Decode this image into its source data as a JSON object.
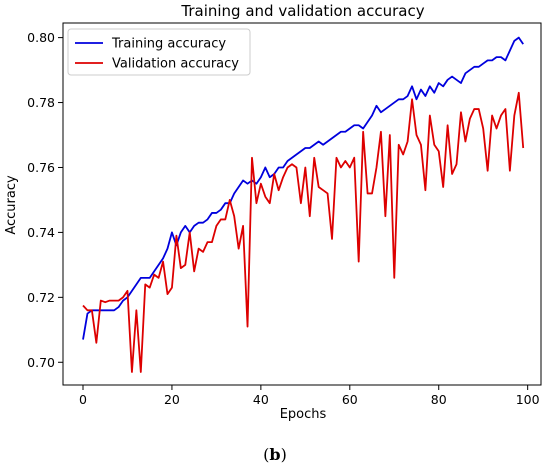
{
  "chart_data": {
    "type": "line",
    "title": "Training and validation accuracy",
    "xlabel": "Epochs",
    "ylabel": "Accuracy",
    "xlim": [
      -4.5,
      103
    ],
    "ylim": [
      0.693,
      0.8045
    ],
    "x_ticks": [
      0,
      20,
      40,
      60,
      80,
      100
    ],
    "y_ticks": [
      0.7,
      0.72,
      0.74,
      0.76,
      0.78,
      0.8
    ],
    "grid": false,
    "legend_position": "top-left",
    "series": [
      {
        "name": "Training accuracy",
        "color": "#0000dd",
        "values": [
          0.707,
          0.715,
          0.716,
          0.716,
          0.716,
          0.716,
          0.716,
          0.716,
          0.717,
          0.719,
          0.72,
          0.722,
          0.724,
          0.726,
          0.726,
          0.726,
          0.728,
          0.73,
          0.732,
          0.735,
          0.74,
          0.736,
          0.74,
          0.742,
          0.74,
          0.742,
          0.743,
          0.743,
          0.744,
          0.746,
          0.746,
          0.747,
          0.749,
          0.749,
          0.752,
          0.754,
          0.756,
          0.755,
          0.756,
          0.755,
          0.757,
          0.76,
          0.757,
          0.758,
          0.76,
          0.76,
          0.762,
          0.763,
          0.764,
          0.765,
          0.766,
          0.766,
          0.767,
          0.768,
          0.767,
          0.768,
          0.769,
          0.77,
          0.771,
          0.771,
          0.772,
          0.773,
          0.773,
          0.772,
          0.774,
          0.776,
          0.779,
          0.777,
          0.778,
          0.779,
          0.78,
          0.781,
          0.781,
          0.782,
          0.785,
          0.781,
          0.784,
          0.782,
          0.785,
          0.783,
          0.786,
          0.785,
          0.787,
          0.788,
          0.787,
          0.786,
          0.789,
          0.79,
          0.791,
          0.791,
          0.792,
          0.793,
          0.793,
          0.794,
          0.794,
          0.793,
          0.796,
          0.799,
          0.8,
          0.798
        ]
      },
      {
        "name": "Validation accuracy",
        "color": "#dd0000",
        "values": [
          0.7175,
          0.716,
          0.716,
          0.706,
          0.719,
          0.7185,
          0.719,
          0.719,
          0.719,
          0.72,
          0.722,
          0.697,
          0.716,
          0.697,
          0.724,
          0.723,
          0.727,
          0.726,
          0.731,
          0.721,
          0.723,
          0.739,
          0.729,
          0.73,
          0.74,
          0.728,
          0.735,
          0.734,
          0.737,
          0.737,
          0.742,
          0.744,
          0.744,
          0.75,
          0.745,
          0.735,
          0.742,
          0.711,
          0.763,
          0.749,
          0.755,
          0.751,
          0.749,
          0.758,
          0.753,
          0.757,
          0.76,
          0.761,
          0.76,
          0.749,
          0.76,
          0.745,
          0.763,
          0.754,
          0.753,
          0.752,
          0.738,
          0.763,
          0.76,
          0.762,
          0.76,
          0.763,
          0.731,
          0.771,
          0.752,
          0.752,
          0.76,
          0.771,
          0.745,
          0.77,
          0.726,
          0.767,
          0.764,
          0.768,
          0.781,
          0.77,
          0.767,
          0.753,
          0.776,
          0.767,
          0.765,
          0.754,
          0.773,
          0.758,
          0.761,
          0.777,
          0.768,
          0.775,
          0.778,
          0.778,
          0.772,
          0.759,
          0.776,
          0.772,
          0.776,
          0.778,
          0.759,
          0.776,
          0.783,
          0.766
        ]
      }
    ]
  },
  "caption": {
    "open": "(",
    "letter": "b",
    "close": ")"
  }
}
